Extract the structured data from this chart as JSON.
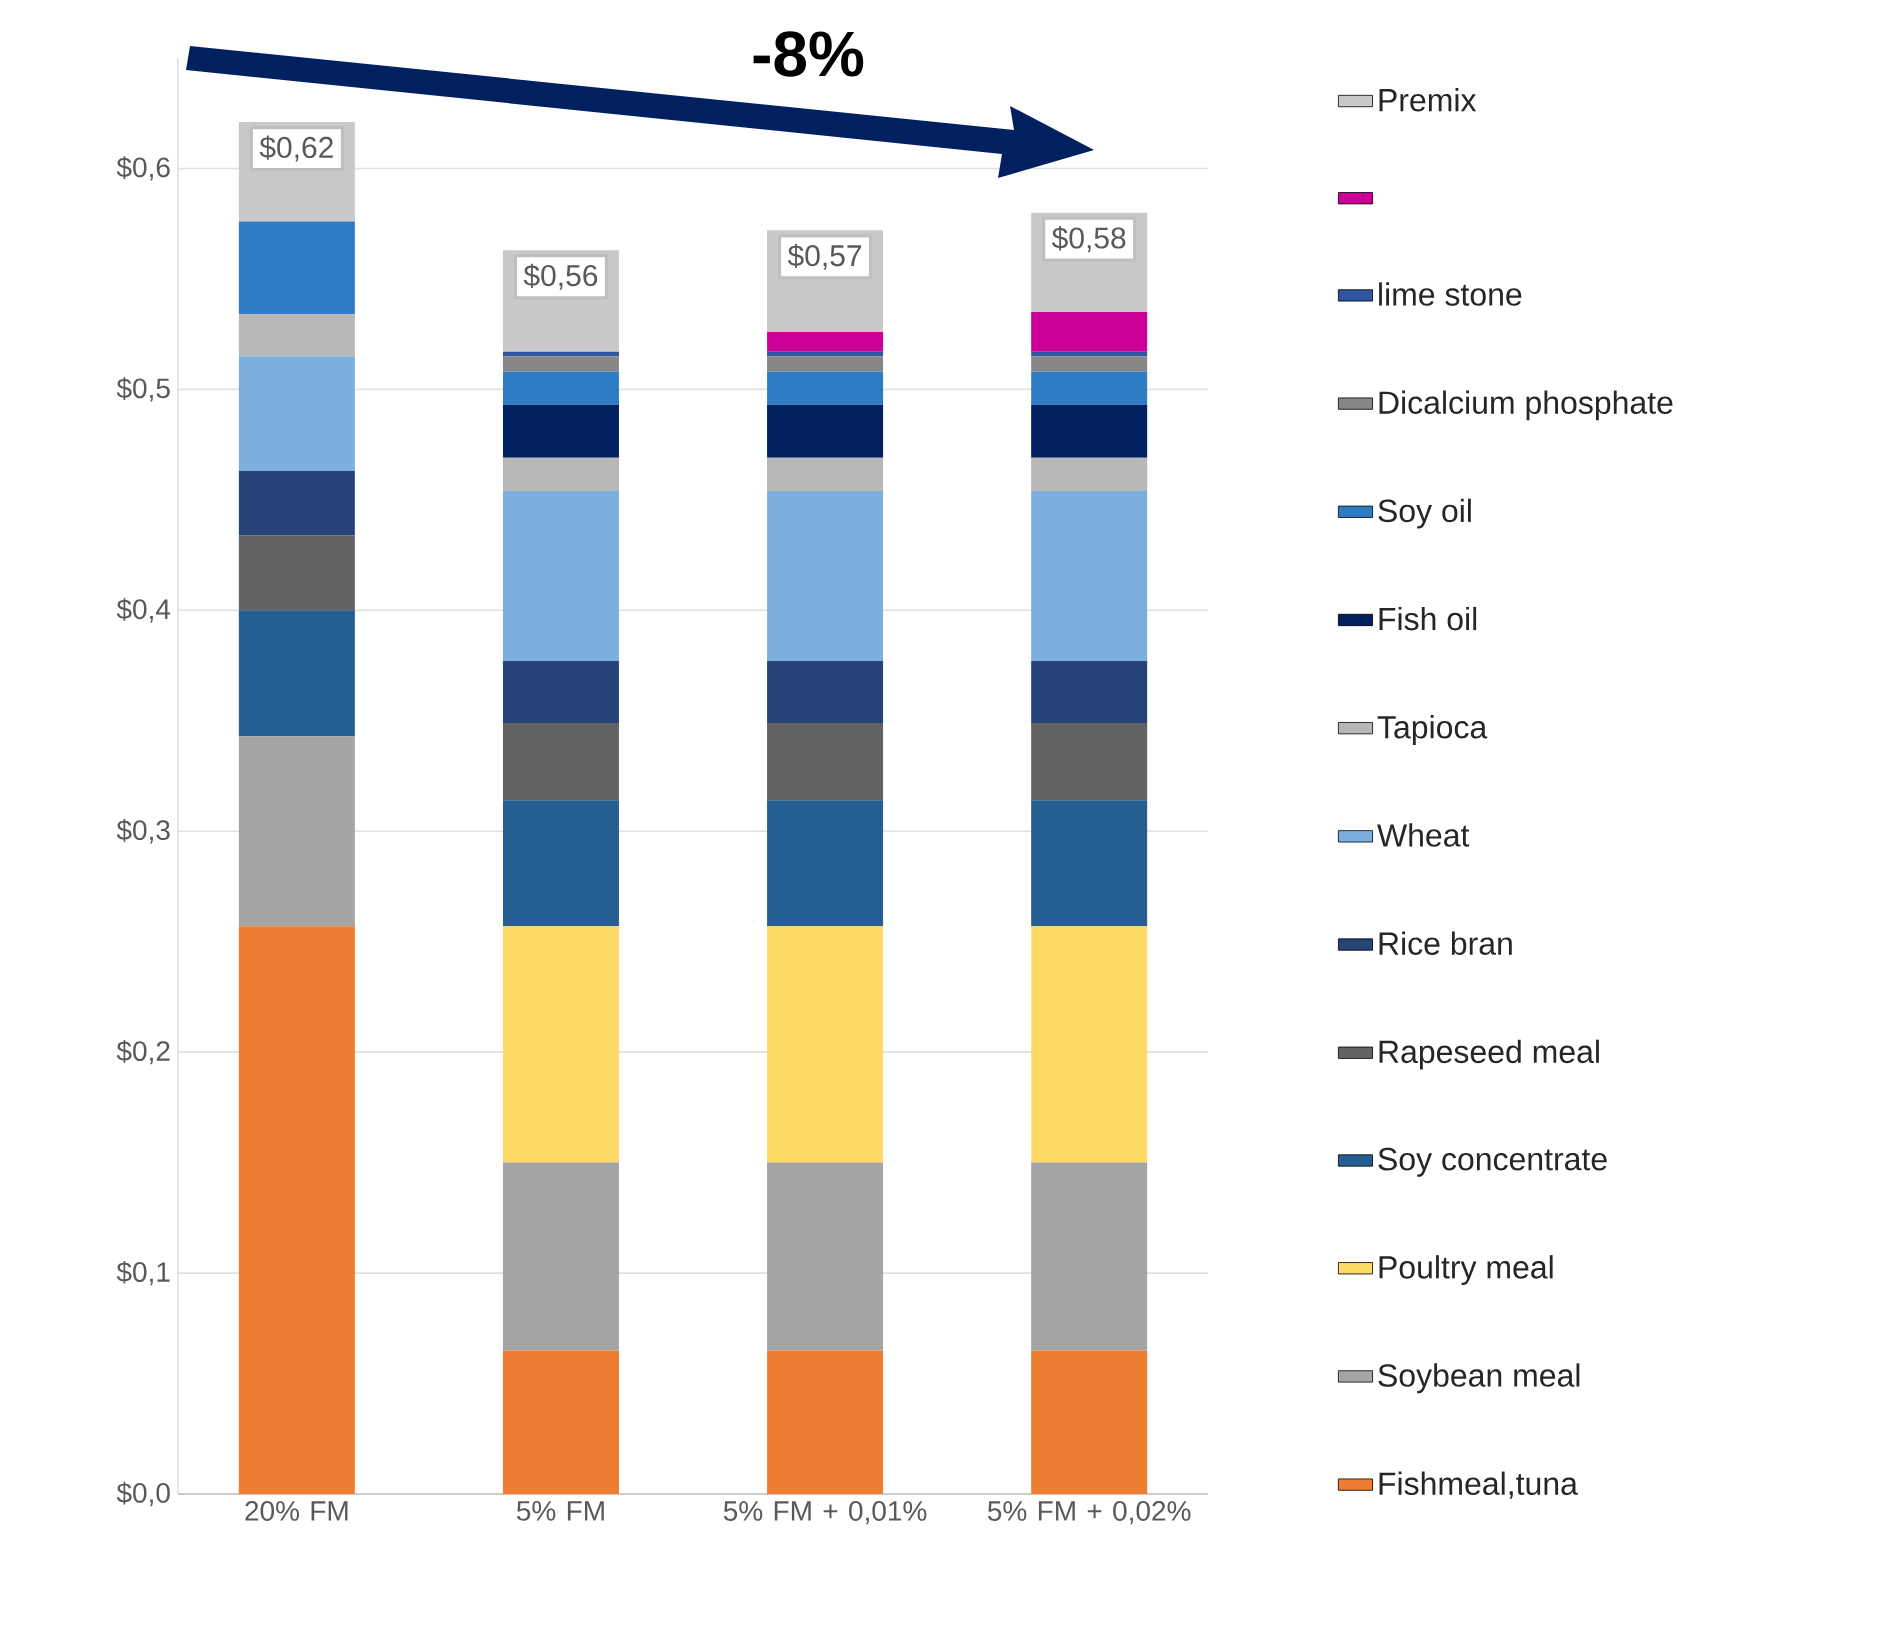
{
  "chart_data": {
    "type": "bar",
    "stacked": true,
    "categories": [
      "20% FM",
      "5% FM",
      "5% FM + 0,01%",
      "5% FM + 0,02%"
    ],
    "series": [
      {
        "name": "Fishmeal,tuna",
        "color": "#ed7d31",
        "values": [
          0.257,
          0.065,
          0.065,
          0.065
        ]
      },
      {
        "name": "Soybean meal",
        "color": "#a5a5a5",
        "values": [
          0.086,
          0.085,
          0.085,
          0.085
        ]
      },
      {
        "name": "Poultry meal",
        "color": "#ffd966",
        "values": [
          0,
          0.107,
          0.107,
          0.107
        ]
      },
      {
        "name": "Soy concentrate",
        "color": "#255e91",
        "values": [
          0.057,
          0.057,
          0.057,
          0.057
        ]
      },
      {
        "name": "Rapeseed meal",
        "color": "#636363",
        "values": [
          0.034,
          0.035,
          0.035,
          0.035
        ]
      },
      {
        "name": "Rice bran",
        "color": "#264478",
        "values": [
          0.029,
          0.028,
          0.028,
          0.028
        ]
      },
      {
        "name": "Wheat",
        "color": "#7cafdd",
        "values": [
          0.052,
          0.077,
          0.077,
          0.077
        ]
      },
      {
        "name": "Tapioca",
        "color": "#b7b7b7",
        "values": [
          0.019,
          0.015,
          0.015,
          0.015
        ]
      },
      {
        "name": "Fish oil",
        "color": "#002060",
        "values": [
          0,
          0.024,
          0.024,
          0.024
        ]
      },
      {
        "name": "Soy oil",
        "color": "#2e7dc4",
        "values": [
          0.042,
          0.015,
          0.015,
          0.015
        ]
      },
      {
        "name": "Dicalcium phosphate",
        "color": "#878787",
        "values": [
          0,
          0.007,
          0.007,
          0.007
        ]
      },
      {
        "name": "lime stone",
        "color": "#2f55a4",
        "values": [
          0,
          0.002,
          0.002,
          0.002
        ]
      },
      {
        "color": "#cc0099",
        "values": [
          0,
          0,
          0.009,
          0.018
        ]
      },
      {
        "name": "Premix",
        "color": "#c9c9c9",
        "values": [
          0.045,
          0.046,
          0.046,
          0.045
        ]
      }
    ],
    "totals": [
      "$0,62",
      "$0,56",
      "$0,57",
      "$0,58"
    ],
    "annotations": [
      "-8%"
    ],
    "ylim": [
      0,
      0.65
    ],
    "yticks": [
      {
        "value": 0,
        "label": "$0,0"
      },
      {
        "value": 0.1,
        "label": "$0,1"
      },
      {
        "value": 0.2,
        "label": "$0,2"
      },
      {
        "value": 0.3,
        "label": "$0,3"
      },
      {
        "value": 0.4,
        "label": "$0,4"
      },
      {
        "value": 0.5,
        "label": "$0,5"
      },
      {
        "value": 0.6,
        "label": "$0,6"
      }
    ],
    "grid": "y",
    "legend": "right"
  }
}
